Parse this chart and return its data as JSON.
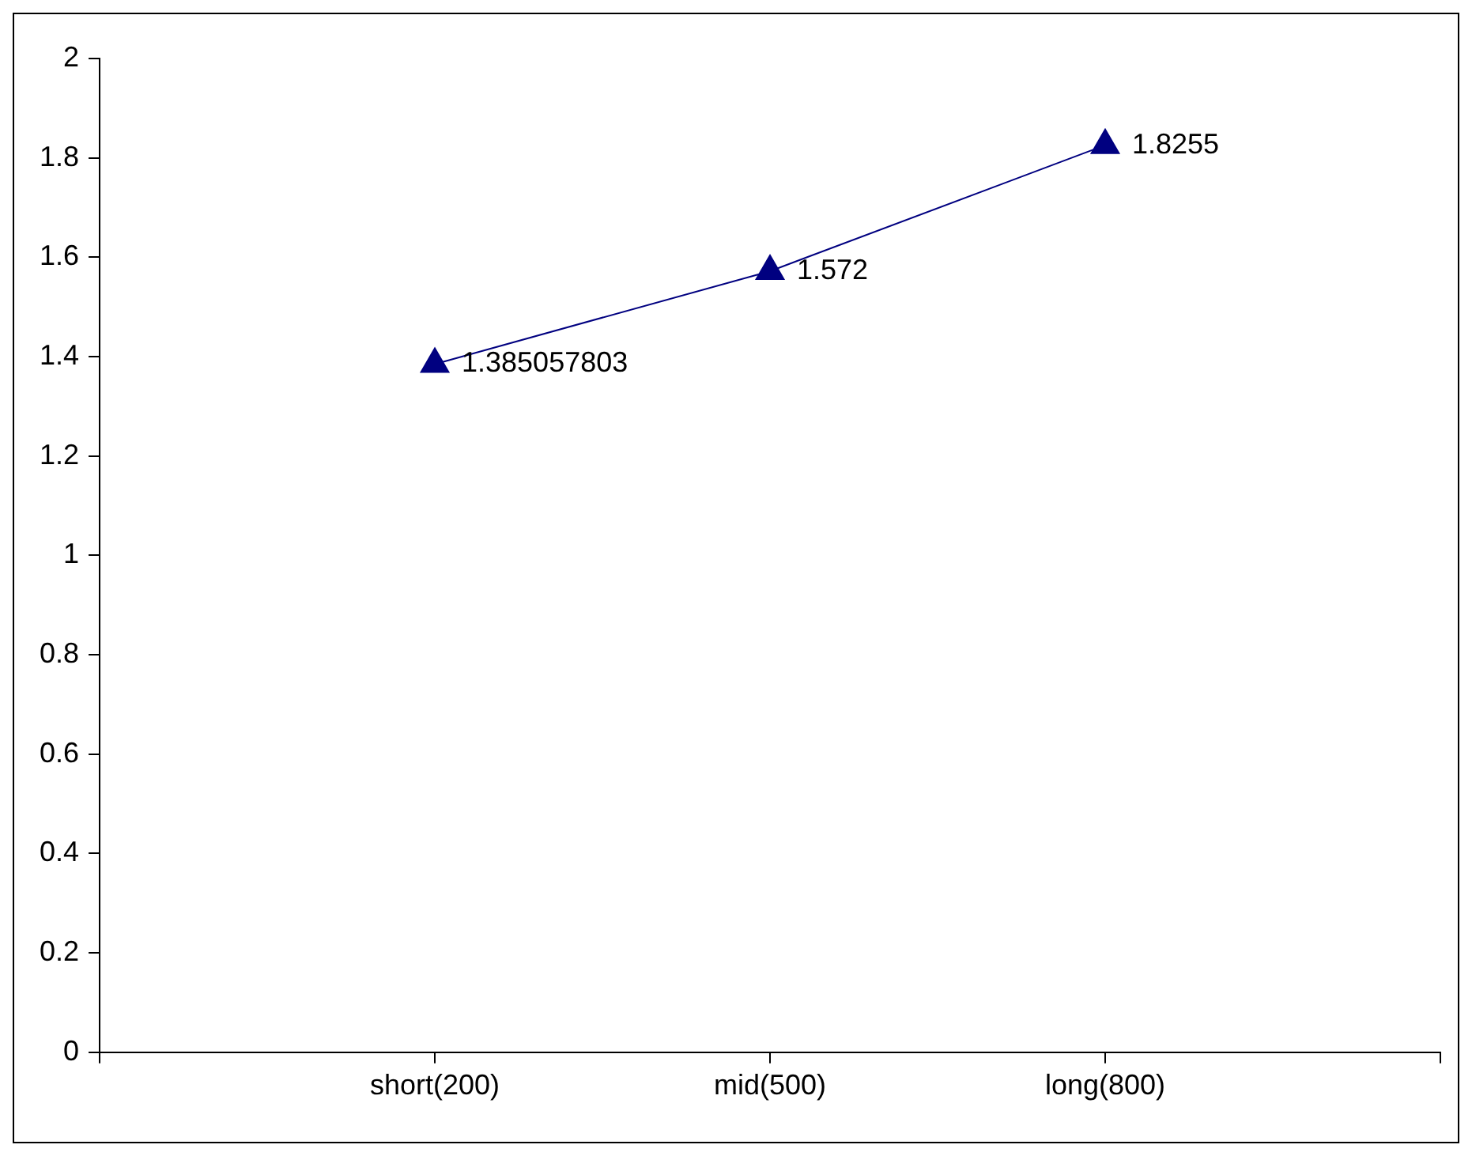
{
  "chart_data": {
    "type": "line",
    "categories": [
      null,
      "short(200)",
      "mid(500)",
      "long(800)",
      null
    ],
    "series": [
      {
        "color": "#000080",
        "values": [
          null,
          1.385057803,
          1.572,
          1.8255,
          null
        ]
      }
    ],
    "ylim": [
      0,
      2
    ],
    "yticks": [
      0,
      0.2,
      0.4,
      0.6,
      0.8,
      1,
      1.2,
      1.4,
      1.6,
      1.8,
      2
    ],
    "marker": "triangle",
    "line_style": "solid",
    "data_labels": true,
    "grid": false,
    "legend": false
  }
}
